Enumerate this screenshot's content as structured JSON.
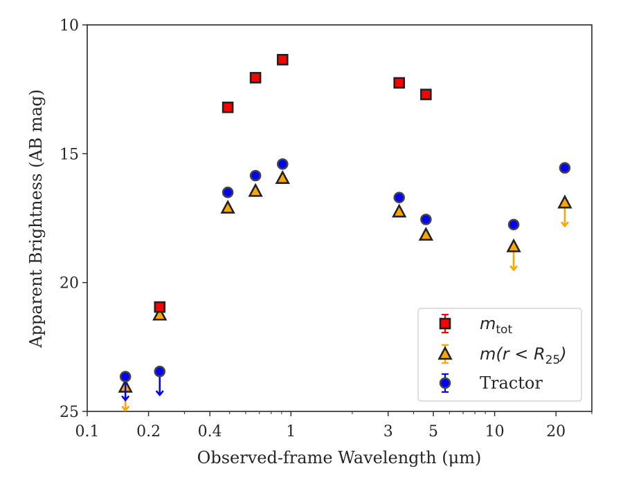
{
  "chart_data": {
    "type": "scatter",
    "xlabel": "Observed-frame Wavelength (μm)",
    "ylabel": "Apparent Brightness (AB mag)",
    "xscale": "log",
    "xlim": [
      0.1,
      30
    ],
    "ylim": [
      25,
      10
    ],
    "y_inverted": true,
    "x_ticks": [
      {
        "value": 0.1,
        "label": "0.1"
      },
      {
        "value": 0.2,
        "label": "0.2"
      },
      {
        "value": 0.4,
        "label": "0.4"
      },
      {
        "value": 1,
        "label": "1"
      },
      {
        "value": 3,
        "label": "3"
      },
      {
        "value": 5,
        "label": "5"
      },
      {
        "value": 10,
        "label": "10"
      },
      {
        "value": 20,
        "label": "20"
      }
    ],
    "y_ticks": [
      {
        "value": 10,
        "label": "10"
      },
      {
        "value": 15,
        "label": "15"
      },
      {
        "value": 20,
        "label": "20"
      },
      {
        "value": 25,
        "label": "25"
      }
    ],
    "legend": {
      "placement": "lower-right"
    },
    "series": [
      {
        "name_main": "m",
        "name_sub": "tot",
        "marker": "square",
        "color": "#ff0000",
        "edge": "#222222",
        "x": [
          0.227,
          0.49,
          0.67,
          0.91,
          3.4,
          4.6
        ],
        "y": [
          20.95,
          13.2,
          12.05,
          11.35,
          12.25,
          12.7
        ],
        "upper_limit": [
          false,
          false,
          false,
          false,
          false,
          false
        ]
      },
      {
        "name_main": "m(r < R",
        "name_sub": "25",
        "name_end": ")",
        "marker": "triangle",
        "color": "#ffa500",
        "edge": "#222222",
        "x": [
          0.154,
          0.227,
          0.49,
          0.67,
          0.91,
          3.4,
          4.6,
          12.4,
          22.1
        ],
        "y": [
          24.05,
          21.25,
          17.1,
          16.45,
          15.95,
          17.25,
          18.15,
          18.6,
          16.9
        ],
        "upper_limit": [
          true,
          false,
          false,
          false,
          false,
          false,
          false,
          true,
          true
        ]
      },
      {
        "name": "Tractor",
        "marker": "circle",
        "color": "#0000ff",
        "edge": "#444444",
        "x": [
          0.154,
          0.227,
          0.49,
          0.67,
          0.91,
          3.4,
          4.6,
          12.4,
          22.1
        ],
        "y": [
          23.65,
          23.45,
          16.5,
          15.85,
          15.4,
          16.7,
          17.55,
          17.75,
          15.55
        ],
        "upper_limit": [
          true,
          true,
          false,
          false,
          false,
          false,
          false,
          false,
          false
        ]
      }
    ]
  }
}
